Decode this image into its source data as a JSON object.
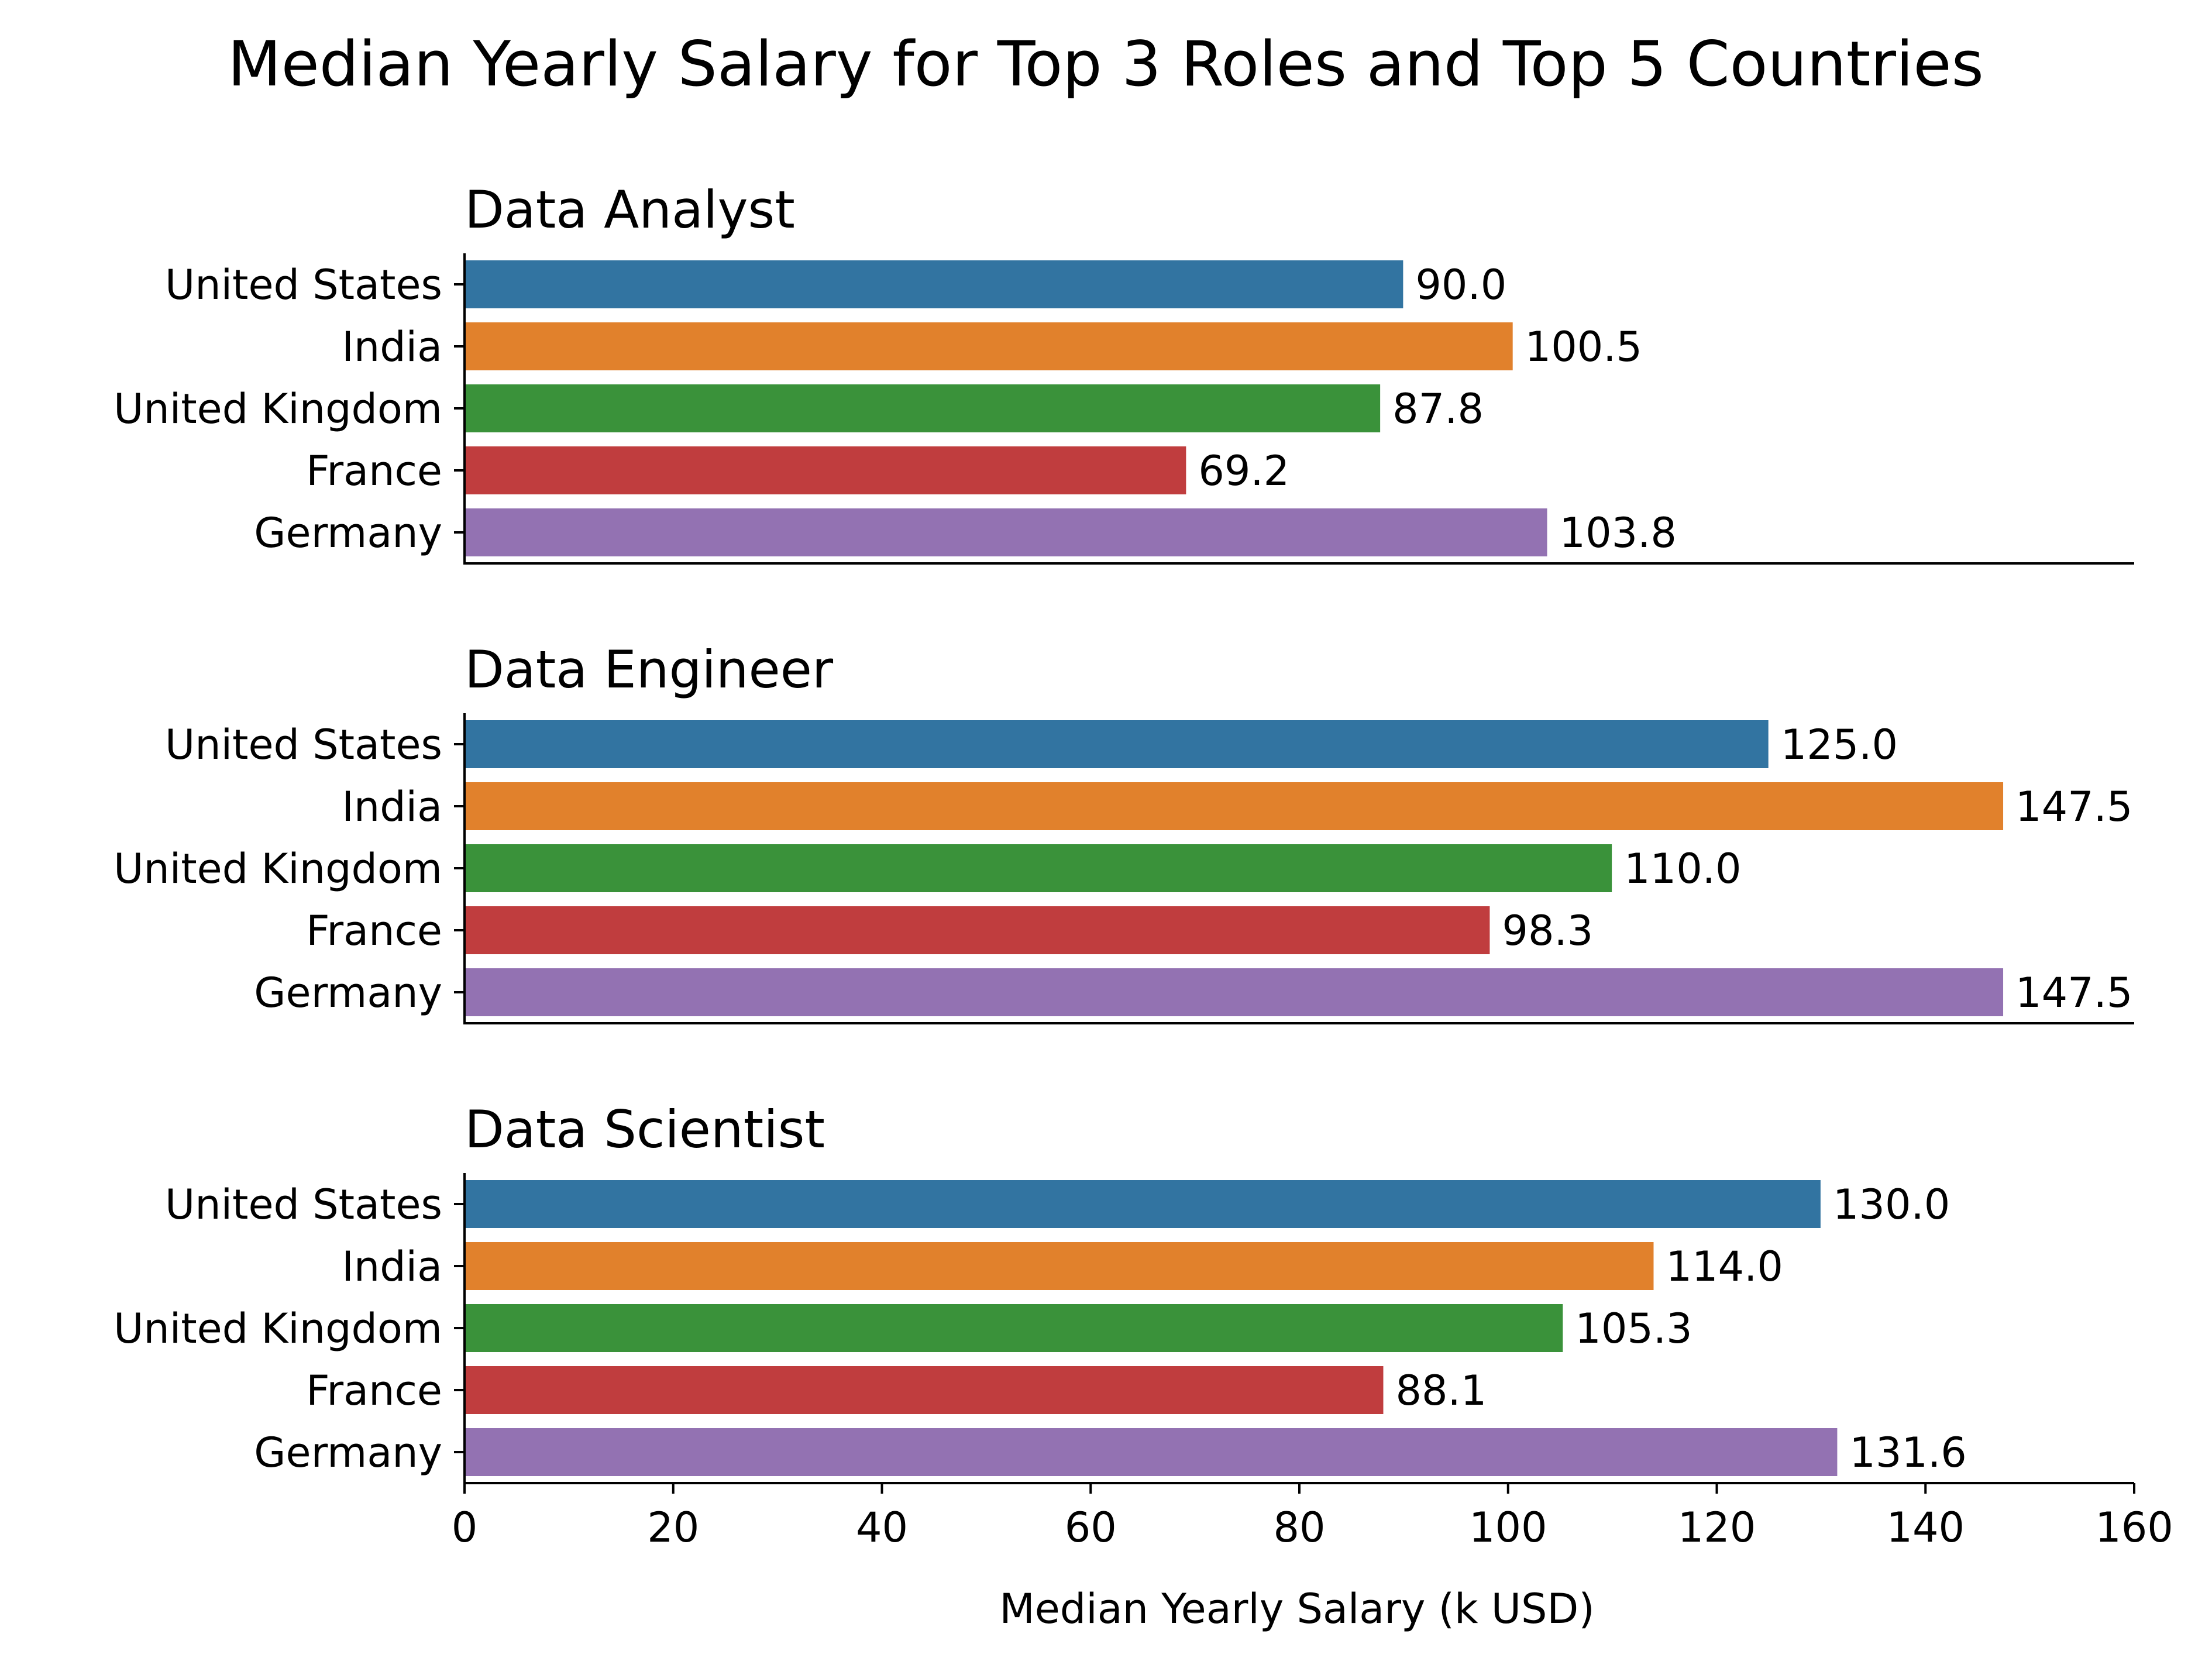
{
  "chart_data": {
    "type": "bar",
    "orientation": "horizontal",
    "title": "Median Yearly Salary for Top 3 Roles and Top 5 Countries",
    "xlabel": "Median Yearly Salary (k USD)",
    "xlim": [
      0,
      160
    ],
    "xticks": [
      "0",
      "20",
      "40",
      "60",
      "80",
      "100",
      "120",
      "140",
      "160"
    ],
    "grid": false,
    "categories": [
      "United States",
      "India",
      "United Kingdom",
      "France",
      "Germany"
    ],
    "colors": [
      "#3274a1",
      "#e1812c",
      "#3a923a",
      "#c03d3e",
      "#9372b2"
    ],
    "panels": [
      {
        "title": "Data Analyst",
        "values": [
          90.0,
          100.5,
          87.8,
          69.2,
          103.8
        ],
        "labels": [
          "90.0",
          "100.5",
          "87.8",
          "69.2",
          "103.8"
        ]
      },
      {
        "title": "Data Engineer",
        "values": [
          125.0,
          147.5,
          110.0,
          98.3,
          147.5
        ],
        "labels": [
          "125.0",
          "147.5",
          "110.0",
          "98.3",
          "147.5"
        ]
      },
      {
        "title": "Data Scientist",
        "values": [
          130.0,
          114.0,
          105.3,
          88.1,
          131.6
        ],
        "labels": [
          "130.0",
          "114.0",
          "105.3",
          "88.1",
          "131.6"
        ]
      }
    ]
  }
}
